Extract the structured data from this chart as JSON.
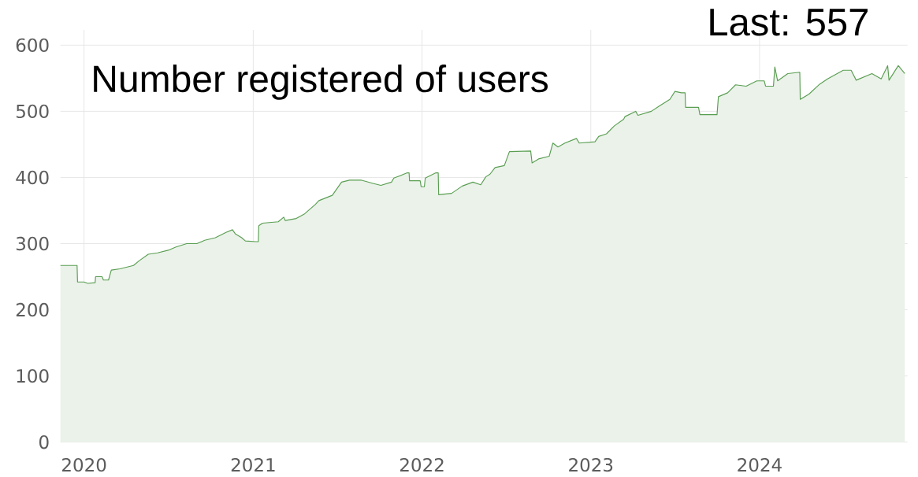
{
  "chart_data": {
    "type": "area",
    "title": "Number registered of users",
    "annotations": [
      "Last: 557"
    ],
    "x": [
      "2019-11-11",
      "2019-12-17",
      "2019-12-18",
      "2020-01-01",
      "2020-01-09",
      "2020-01-25",
      "2020-01-26",
      "2020-02-09",
      "2020-02-12",
      "2020-02-23",
      "2020-02-29",
      "2020-03-19",
      "2020-04-17",
      "2020-04-29",
      "2020-05-19",
      "2020-06-08",
      "2020-07-01",
      "2020-07-18",
      "2020-08-10",
      "2020-09-01",
      "2020-09-18",
      "2020-10-11",
      "2020-11-03",
      "2020-11-17",
      "2020-11-23",
      "2020-12-07",
      "2020-12-15",
      "2021-01-07",
      "2021-01-12",
      "2021-01-13",
      "2021-01-21",
      "2021-02-24",
      "2021-03-08",
      "2021-03-11",
      "2021-04-04",
      "2021-04-22",
      "2021-05-15",
      "2021-05-23",
      "2021-06-21",
      "2021-06-29",
      "2021-07-11",
      "2021-07-28",
      "2021-08-22",
      "2021-09-17",
      "2021-10-04",
      "2021-10-27",
      "2021-11-01",
      "2021-11-30",
      "2021-12-04",
      "2021-12-05",
      "2021-12-28",
      "2021-12-30",
      "2022-01-06",
      "2022-01-08",
      "2022-01-31",
      "2022-02-05",
      "2022-02-06",
      "2022-03-06",
      "2022-03-29",
      "2022-04-21",
      "2022-05-08",
      "2022-05-19",
      "2022-05-28",
      "2022-06-08",
      "2022-06-28",
      "2022-07-09",
      "2022-08-24",
      "2022-08-27",
      "2022-09-10",
      "2022-10-03",
      "2022-10-11",
      "2022-10-22",
      "2022-11-06",
      "2022-12-01",
      "2022-12-07",
      "2023-01-10",
      "2023-01-18",
      "2023-02-04",
      "2023-02-21",
      "2023-03-13",
      "2023-03-16",
      "2023-04-08",
      "2023-04-13",
      "2023-05-12",
      "2023-05-29",
      "2023-06-21",
      "2023-07-02",
      "2023-07-16",
      "2023-07-24",
      "2023-07-25",
      "2023-08-22",
      "2023-08-25",
      "2023-10-01",
      "2023-10-04",
      "2023-10-24",
      "2023-11-10",
      "2023-12-03",
      "2023-12-26",
      "2024-01-11",
      "2024-01-14",
      "2024-01-31",
      "2024-02-03",
      "2024-02-09",
      "2024-03-02",
      "2024-03-28",
      "2024-03-29",
      "2024-04-17",
      "2024-05-10",
      "2024-05-27",
      "2024-06-30",
      "2024-07-17",
      "2024-07-28",
      "2024-08-31",
      "2024-09-20",
      "2024-10-04",
      "2024-10-07",
      "2024-10-27",
      "2024-11-10"
    ],
    "values": [
      267,
      267,
      242,
      242,
      240,
      241,
      250,
      250,
      245,
      245,
      260,
      262,
      267,
      274,
      284,
      286,
      290,
      295,
      300,
      300,
      305,
      309,
      317,
      321,
      315,
      309,
      304,
      303,
      303,
      327,
      331,
      333,
      340,
      335,
      338,
      345,
      359,
      365,
      373,
      381,
      393,
      396,
      396,
      391,
      388,
      393,
      399,
      407,
      407,
      395,
      395,
      386,
      386,
      399,
      407,
      407,
      374,
      376,
      387,
      393,
      389,
      401,
      405,
      415,
      418,
      439,
      440,
      422,
      428,
      432,
      452,
      446,
      452,
      459,
      452,
      454,
      462,
      466,
      478,
      488,
      492,
      500,
      494,
      500,
      508,
      518,
      530,
      528,
      528,
      506,
      506,
      495,
      495,
      522,
      528,
      540,
      538,
      546,
      546,
      538,
      538,
      567,
      546,
      557,
      559,
      518,
      526,
      541,
      549,
      562,
      562,
      547,
      557,
      549,
      569,
      547,
      569,
      557
    ],
    "color": "#5a9e52",
    "xlim": [
      "2019-11-11",
      "2024-11-16"
    ],
    "xticks": [
      "2020",
      "2021",
      "2022",
      "2023",
      "2024"
    ],
    "ylim": [
      0,
      623
    ],
    "yticks": [
      0,
      100,
      200,
      300,
      400,
      500,
      600
    ],
    "grid": true
  }
}
